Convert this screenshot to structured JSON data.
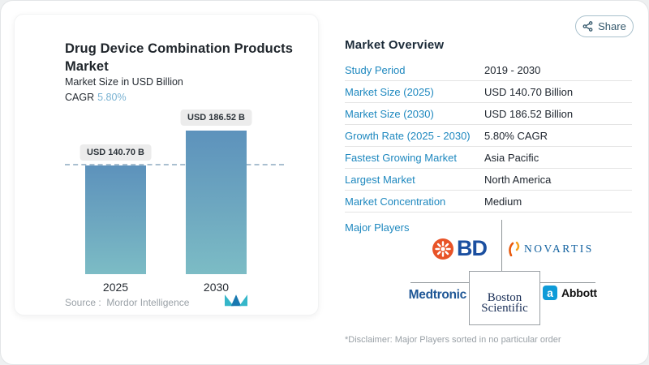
{
  "share": {
    "label": "Share"
  },
  "chart_panel": {
    "title": "Drug Device Combination Products Market",
    "subtitle": "Market Size in USD Billion",
    "cagr_label": "CAGR",
    "cagr_value": "5.80%",
    "source_label": "Source :",
    "source_value": "Mordor Intelligence"
  },
  "chart_data": {
    "type": "bar",
    "title": "Drug Device Combination Products Market",
    "ylabel": "Market Size in USD Billion",
    "categories": [
      "2025",
      "2030"
    ],
    "values": [
      140.7,
      186.52
    ],
    "value_labels": [
      "USD 140.70 B",
      "USD 186.52 B"
    ],
    "ylim": [
      0,
      186.52
    ],
    "reference_line_at": 140.7,
    "bar_gradient_top": "#5d92bc",
    "bar_gradient_bottom": "#7cbcc5",
    "grid": false,
    "legend": "none"
  },
  "overview": {
    "title": "Market Overview",
    "rows": [
      {
        "label": "Study Period",
        "value": "2019 - 2030"
      },
      {
        "label": "Market Size (2025)",
        "value": "USD 140.70 Billion"
      },
      {
        "label": "Market Size (2030)",
        "value": "USD 186.52 Billion"
      },
      {
        "label": "Growth Rate (2025 - 2030)",
        "value": "5.80% CAGR"
      },
      {
        "label": "Fastest Growing Market",
        "value": "Asia Pacific"
      },
      {
        "label": "Largest Market",
        "value": "North America"
      },
      {
        "label": "Market Concentration",
        "value": "Medium"
      }
    ],
    "major_players_label": "Major Players",
    "players": {
      "bd": "BD",
      "novartis": "NOVARTIS",
      "medtronic": "Medtronic",
      "boston_line1": "Boston",
      "boston_line2": "Scientific",
      "abbott": "Abbott",
      "abbott_mark": "a"
    },
    "disclaimer": "*Disclaimer: Major Players sorted in no particular order"
  },
  "colors": {
    "label_blue": "#1e88bf",
    "cagr_blue": "#79b2d2",
    "bar_top": "#5d92bc",
    "bar_bottom": "#7cbcc5",
    "bd_orange": "#e85327",
    "bd_blue": "#1b4fa0",
    "novartis_blue": "#10609f",
    "medtronic_blue": "#1f5796",
    "boston_navy": "#1a2f57",
    "abbott_blue": "#0e9bd8",
    "mordor_teal": "#35b6c9",
    "mordor_blue": "#1878b0"
  }
}
